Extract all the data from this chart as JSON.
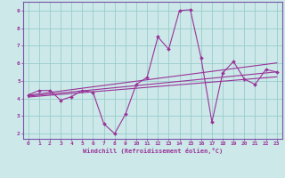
{
  "xlabel": "Windchill (Refroidissement éolien,°C)",
  "bg_color": "#cce8e8",
  "line_color": "#993399",
  "grid_color": "#99cccc",
  "spine_color": "#7755aa",
  "x_data": [
    0,
    1,
    2,
    3,
    4,
    5,
    6,
    7,
    8,
    9,
    10,
    11,
    12,
    13,
    14,
    15,
    16,
    17,
    18,
    19,
    20,
    21,
    22,
    23
  ],
  "y_main": [
    4.2,
    4.45,
    4.45,
    3.9,
    4.1,
    4.45,
    4.35,
    2.55,
    2.0,
    3.1,
    4.8,
    5.2,
    7.5,
    6.8,
    9.0,
    9.05,
    6.3,
    2.65,
    5.45,
    6.1,
    5.1,
    4.8,
    5.65,
    5.5
  ],
  "y_line1": [
    4.18,
    4.26,
    4.34,
    4.42,
    4.5,
    4.58,
    4.66,
    4.74,
    4.82,
    4.9,
    4.98,
    5.06,
    5.14,
    5.22,
    5.3,
    5.38,
    5.46,
    5.54,
    5.62,
    5.7,
    5.78,
    5.86,
    5.94,
    6.02
  ],
  "y_line2": [
    4.13,
    4.19,
    4.25,
    4.31,
    4.37,
    4.43,
    4.49,
    4.55,
    4.61,
    4.67,
    4.73,
    4.79,
    4.85,
    4.91,
    4.97,
    5.03,
    5.09,
    5.15,
    5.21,
    5.27,
    5.33,
    5.39,
    5.45,
    5.51
  ],
  "y_line3": [
    4.08,
    4.13,
    4.18,
    4.23,
    4.28,
    4.33,
    4.38,
    4.43,
    4.48,
    4.53,
    4.58,
    4.63,
    4.68,
    4.73,
    4.78,
    4.83,
    4.88,
    4.93,
    4.98,
    5.03,
    5.08,
    5.13,
    5.18,
    5.23
  ],
  "ylim": [
    1.7,
    9.5
  ],
  "xlim": [
    -0.5,
    23.5
  ],
  "yticks": [
    2,
    3,
    4,
    5,
    6,
    7,
    8,
    9
  ],
  "xticks": [
    0,
    1,
    2,
    3,
    4,
    5,
    6,
    7,
    8,
    9,
    10,
    11,
    12,
    13,
    14,
    15,
    16,
    17,
    18,
    19,
    20,
    21,
    22,
    23
  ]
}
